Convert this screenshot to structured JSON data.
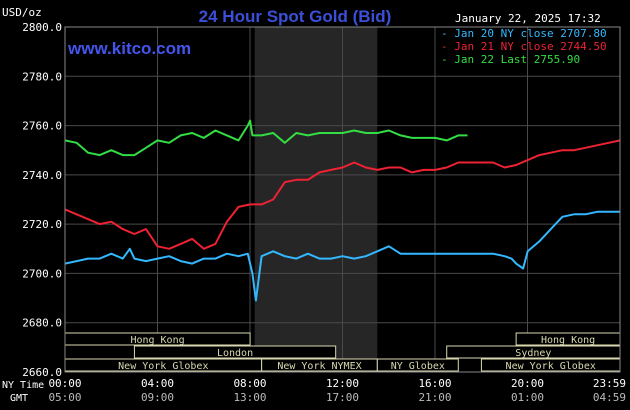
{
  "chart_data": {
    "type": "line",
    "title": "24 Hour Spot Gold (Bid)",
    "subtitle": "January 22, 2025 17:32",
    "site": "www.kitco.com",
    "ylabel": "USD/oz",
    "ylim": [
      2660,
      2800
    ],
    "y_ticks": [
      "2800.0",
      "2780.0",
      "2760.0",
      "2740.0",
      "2720.0",
      "2700.0",
      "2680.0",
      "2660.0"
    ],
    "x_row_label_1": "NY Time",
    "x_row_label_2": "GMT",
    "x_ticks_ny": [
      "00:00",
      "04:00",
      "08:00",
      "12:00",
      "16:00",
      "20:00",
      "23:59"
    ],
    "x_ticks_gmt": [
      "05:00",
      "09:00",
      "13:00",
      "17:00",
      "21:00",
      "01:00",
      "04:59"
    ],
    "grid": true,
    "legend_position": "top-right",
    "colors": {
      "background": "#000000",
      "grid": "#4a4a4a",
      "highlight_band": "#262626",
      "axis_text": "#ffffff",
      "title": "#3b4fd8",
      "site": "#4455ee",
      "market_box": "#d9d9b0"
    },
    "series": [
      {
        "name": "Jan 20 NY close",
        "label": "Jan 20 NY close 2707.80",
        "color": "#33b8ff",
        "x": [
          0,
          0.5,
          1,
          1.5,
          2,
          2.5,
          2.8,
          3,
          3.5,
          4,
          4.5,
          5,
          5.5,
          6,
          6.5,
          7,
          7.5,
          7.9,
          8.1,
          8.25,
          8.5,
          9,
          9.5,
          10,
          10.5,
          11,
          11.5,
          12,
          12.5,
          13,
          13.5,
          14,
          14.5,
          15,
          15.5,
          16,
          16.5,
          17,
          17.5,
          18,
          18.5,
          19,
          19.3,
          19.5,
          19.8,
          20,
          20.5,
          21,
          21.5,
          22,
          22.5,
          23,
          23.5,
          23.99
        ],
        "values": [
          2704,
          2705,
          2706,
          2706,
          2708,
          2706,
          2710,
          2706,
          2705,
          2706,
          2707,
          2705,
          2704,
          2706,
          2706,
          2708,
          2707,
          2708,
          2700,
          2689,
          2707,
          2709,
          2707,
          2706,
          2708,
          2706,
          2706,
          2707,
          2706,
          2707,
          2709,
          2711,
          2708,
          2708,
          2708,
          2708,
          2708,
          2708,
          2708,
          2708,
          2708,
          2707,
          2706,
          2704,
          2702,
          2709,
          2713,
          2718,
          2723,
          2724,
          2724,
          2725,
          2725,
          2725
        ]
      },
      {
        "name": "Jan 21 NY close",
        "label": "Jan 21 NY close 2744.50",
        "color": "#ee2233",
        "x": [
          0,
          0.5,
          1,
          1.5,
          2,
          2.5,
          3,
          3.5,
          4,
          4.5,
          5,
          5.5,
          6,
          6.5,
          7,
          7.5,
          8,
          8.5,
          9,
          9.5,
          10,
          10.5,
          11,
          11.5,
          12,
          12.5,
          13,
          13.5,
          14,
          14.5,
          15,
          15.5,
          16,
          16.5,
          17,
          17.5,
          18,
          18.5,
          19,
          19.5,
          20,
          20.5,
          21,
          21.5,
          22,
          22.5,
          23,
          23.5,
          23.99
        ],
        "values": [
          2726,
          2724,
          2722,
          2720,
          2721,
          2718,
          2716,
          2718,
          2711,
          2710,
          2712,
          2714,
          2710,
          2712,
          2721,
          2727,
          2728,
          2728,
          2730,
          2737,
          2738,
          2738,
          2741,
          2742,
          2743,
          2745,
          2743,
          2742,
          2743,
          2743,
          2741,
          2742,
          2742,
          2743,
          2745,
          2745,
          2745,
          2745,
          2743,
          2744,
          2746,
          2748,
          2749,
          2750,
          2750,
          2751,
          2752,
          2753,
          2754
        ]
      },
      {
        "name": "Jan 22 Last",
        "label": "Jan 22 Last 2755.90",
        "color": "#33dd44",
        "x": [
          0,
          0.5,
          1,
          1.5,
          2,
          2.5,
          3,
          3.5,
          4,
          4.5,
          5,
          5.5,
          6,
          6.5,
          7,
          7.5,
          7.9,
          8,
          8.1,
          8.5,
          9,
          9.5,
          10,
          10.5,
          11,
          11.5,
          12,
          12.5,
          13,
          13.5,
          14,
          14.5,
          15,
          15.5,
          16,
          16.5,
          17,
          17.4
        ],
        "values": [
          2754,
          2753,
          2749,
          2748,
          2750,
          2748,
          2748,
          2751,
          2754,
          2753,
          2756,
          2757,
          2755,
          2758,
          2756,
          2754,
          2760,
          2762,
          2756,
          2756,
          2757,
          2753,
          2757,
          2756,
          2757,
          2757,
          2757,
          2758,
          2757,
          2757,
          2758,
          2756,
          2755,
          2755,
          2755,
          2754,
          2756,
          2756
        ]
      }
    ],
    "markets": [
      {
        "label": "Hong Kong",
        "row": 0,
        "start": 0,
        "end": 8
      },
      {
        "label": "Hong Kong",
        "row": 0,
        "start": 19.5,
        "end": 23.99
      },
      {
        "label": "London",
        "row": 1,
        "start": 3,
        "end": 11.7
      },
      {
        "label": "Sydney",
        "row": 1,
        "start": 16.5,
        "end": 23.99
      },
      {
        "label": "New York Globex",
        "row": 2,
        "start": 0,
        "end": 8.5
      },
      {
        "label": "New York NYMEX",
        "row": 2,
        "start": 8.5,
        "end": 13.5
      },
      {
        "label": "NY Globex",
        "row": 2,
        "start": 13.5,
        "end": 17
      },
      {
        "label": "New York Globex",
        "row": 2,
        "start": 18,
        "end": 23.99
      }
    ],
    "highlight_window": [
      8.2,
      13.5
    ]
  }
}
